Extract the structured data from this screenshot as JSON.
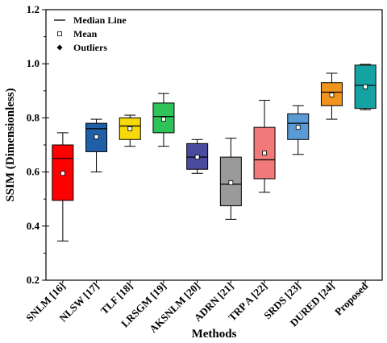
{
  "chart_data": {
    "type": "box",
    "xlabel": "Methods",
    "ylabel": "SSIM (Dimensionless)",
    "ylim": [
      0.2,
      1.2
    ],
    "y_ticks": [
      "0.2",
      "0.4",
      "0.6",
      "0.8",
      "1.0",
      "1.2"
    ],
    "grid": false,
    "legend_position": "top-left",
    "legend": [
      "Median Line",
      "Mean",
      "Outliers"
    ],
    "categories": [
      "SNLM [16]",
      "NLSW [17]",
      "TLF [18]",
      "LRSGM [19]",
      "AKSNLM [20]",
      "ADRN [21]",
      "TRP A [22]",
      "SRDS [23]",
      "DURED [24]",
      "Proposed"
    ],
    "boxes": [
      {
        "whisker_low": 0.345,
        "q1": 0.495,
        "median": 0.65,
        "q3": 0.7,
        "whisker_high": 0.745,
        "mean": 0.595,
        "color": "#ff0000"
      },
      {
        "whisker_low": 0.6,
        "q1": 0.675,
        "median": 0.76,
        "q3": 0.78,
        "whisker_high": 0.795,
        "mean": 0.73,
        "color": "#1f5fa8"
      },
      {
        "whisker_low": 0.695,
        "q1": 0.72,
        "median": 0.77,
        "q3": 0.8,
        "whisker_high": 0.81,
        "mean": 0.76,
        "color": "#f5d90a"
      },
      {
        "whisker_low": 0.695,
        "q1": 0.745,
        "median": 0.805,
        "q3": 0.855,
        "whisker_high": 0.89,
        "mean": 0.795,
        "color": "#2ec45a"
      },
      {
        "whisker_low": 0.595,
        "q1": 0.61,
        "median": 0.655,
        "q3": 0.705,
        "whisker_high": 0.72,
        "mean": 0.655,
        "color": "#4a4a9e"
      },
      {
        "whisker_low": 0.425,
        "q1": 0.475,
        "median": 0.555,
        "q3": 0.655,
        "whisker_high": 0.725,
        "mean": 0.56,
        "color": "#9a9a9a"
      },
      {
        "whisker_low": 0.525,
        "q1": 0.575,
        "median": 0.645,
        "q3": 0.765,
        "whisker_high": 0.865,
        "mean": 0.67,
        "color": "#f07a7a"
      },
      {
        "whisker_low": 0.665,
        "q1": 0.72,
        "median": 0.78,
        "q3": 0.815,
        "whisker_high": 0.845,
        "mean": 0.765,
        "color": "#5b9bd5"
      },
      {
        "whisker_low": 0.795,
        "q1": 0.845,
        "median": 0.895,
        "q3": 0.93,
        "whisker_high": 0.965,
        "mean": 0.885,
        "color": "#f0941e"
      },
      {
        "whisker_low": 0.83,
        "q1": 0.835,
        "median": 0.92,
        "q3": 0.995,
        "whisker_high": 0.998,
        "mean": 0.915,
        "color": "#15a2a2"
      }
    ]
  }
}
